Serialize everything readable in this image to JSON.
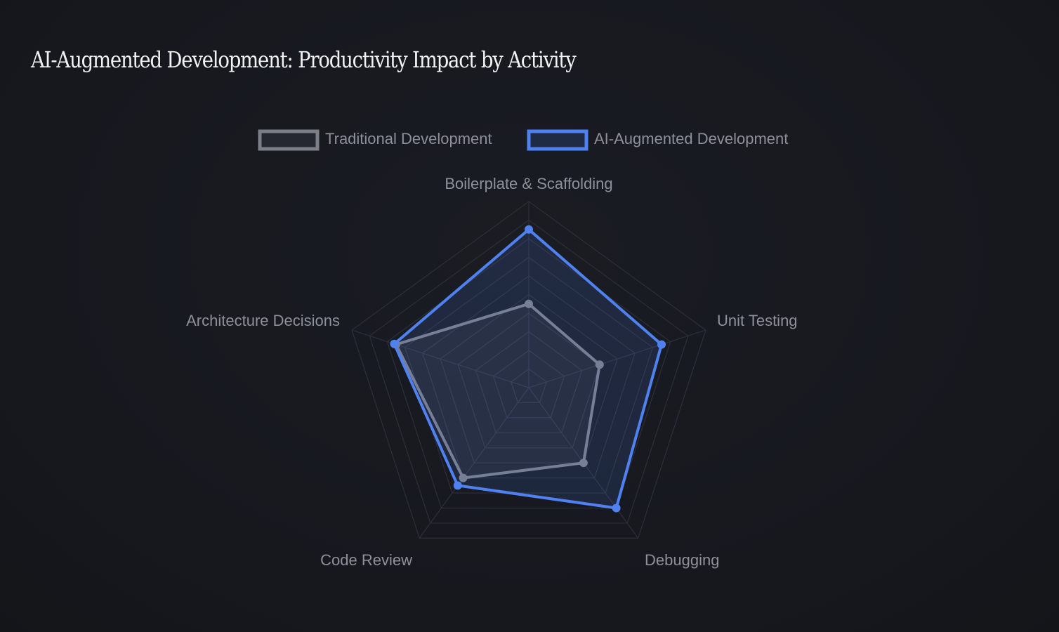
{
  "title": "AI-Augmented Development: Productivity Impact by Activity",
  "colors": {
    "background": "#17191f",
    "grid": "#2c2f38",
    "traditional": "#7d7f88",
    "augmented": "#4f82f0"
  },
  "chart_data": {
    "type": "radar",
    "title": "AI-Augmented Development: Productivity Impact by Activity",
    "categories": [
      "Boilerplate & Scaffolding",
      "Unit Testing",
      "Debugging",
      "Code Review",
      "Architecture Decisions"
    ],
    "rmax": 100,
    "grid_levels": 10,
    "legend_position": "top",
    "series": [
      {
        "name": "Traditional Development",
        "values": [
          45,
          40,
          50,
          60,
          75
        ],
        "color": "#7d7f88"
      },
      {
        "name": "AI-Augmented Development",
        "values": [
          85,
          75,
          80,
          65,
          76
        ],
        "color": "#4f82f0"
      }
    ]
  }
}
